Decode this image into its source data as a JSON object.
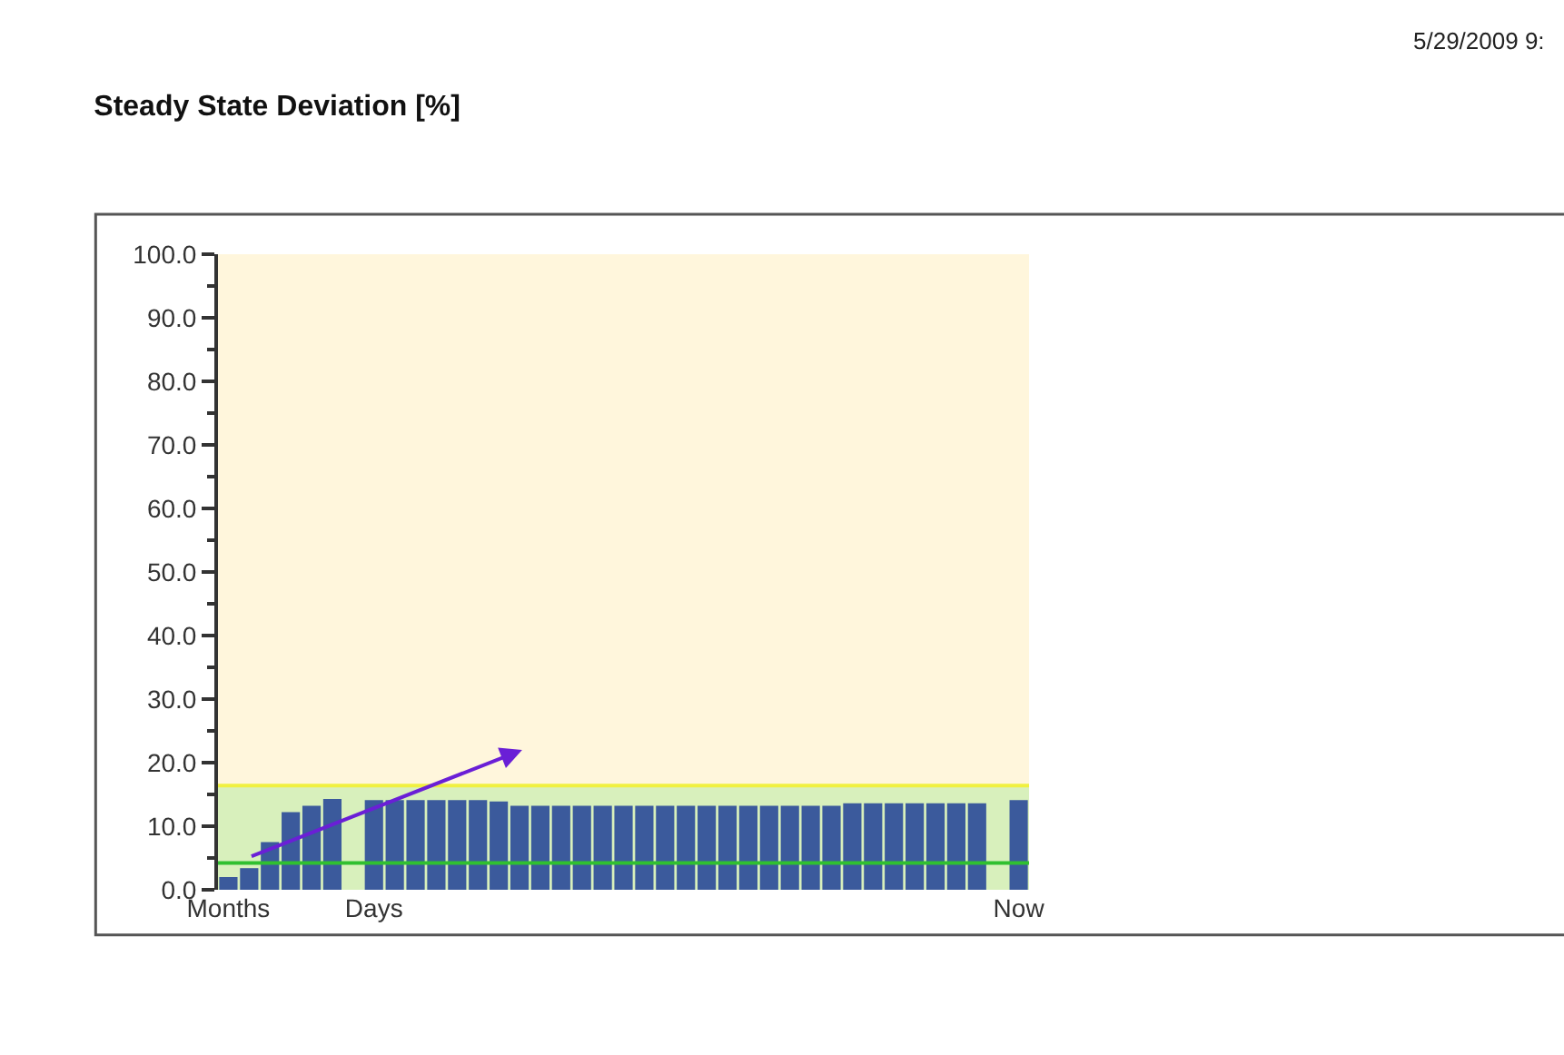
{
  "chart_data": {
    "type": "bar",
    "title": "Steady State Deviation [%]",
    "annotations": [
      "5/29/2009 9:"
    ],
    "categories": [
      "Months",
      null,
      null,
      null,
      null,
      null,
      null,
      "Days",
      null,
      null,
      null,
      null,
      null,
      null,
      null,
      null,
      null,
      null,
      null,
      null,
      null,
      null,
      null,
      null,
      null,
      null,
      null,
      null,
      null,
      null,
      null,
      null,
      null,
      null,
      null,
      null,
      null,
      null,
      "Now"
    ],
    "series": [
      {
        "color": "#3b5a9c",
        "values": [
          2.0,
          3.4,
          7.5,
          12.2,
          13.2,
          14.3,
          null,
          14.1,
          14.1,
          14.1,
          14.1,
          14.1,
          14.1,
          13.9,
          13.2,
          13.2,
          13.2,
          13.2,
          13.2,
          13.2,
          13.2,
          13.2,
          13.2,
          13.2,
          13.2,
          13.2,
          13.2,
          13.2,
          13.2,
          13.2,
          13.6,
          13.6,
          13.6,
          13.6,
          13.6,
          13.6,
          13.6,
          null,
          14.1
        ]
      }
    ],
    "ylim": [
      0,
      100
    ],
    "yticks": [
      {
        "value": 0,
        "label": "0.0"
      },
      {
        "value": 10,
        "label": "10.0"
      },
      {
        "value": 20,
        "label": "20.0"
      },
      {
        "value": 30,
        "label": "30.0"
      },
      {
        "value": 40,
        "label": "40.0"
      },
      {
        "value": 50,
        "label": "50.0"
      },
      {
        "value": 60,
        "label": "60.0"
      },
      {
        "value": 70,
        "label": "70.0"
      },
      {
        "value": 80,
        "label": "80.0"
      },
      {
        "value": 90,
        "label": "90.0"
      },
      {
        "value": 100,
        "label": "100.0"
      }
    ],
    "bands": [
      {
        "axis": "y",
        "from": 0,
        "to": 100,
        "color": "#fff6dc"
      },
      {
        "axis": "y",
        "from": 0,
        "to": 16.4,
        "color": "#d8f0bc"
      }
    ],
    "ref_lines": [
      {
        "axis": "y",
        "value": 16.4,
        "color": "#f0f040"
      },
      {
        "axis": "y",
        "value": 4.2,
        "color": "#30c030"
      }
    ],
    "grid": false
  }
}
